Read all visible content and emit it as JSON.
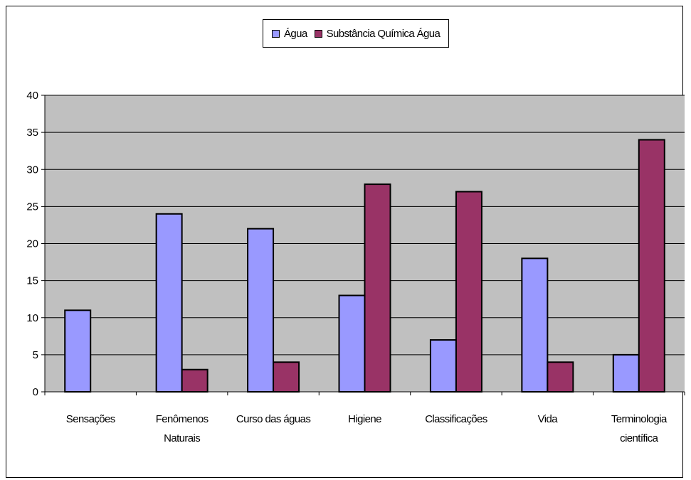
{
  "chart_data": {
    "type": "bar",
    "categories": [
      [
        "Sensações"
      ],
      [
        "Fenômenos",
        "Naturais"
      ],
      [
        "Curso das águas"
      ],
      [
        "Higiene"
      ],
      [
        "Classificações"
      ],
      [
        "Vida"
      ],
      [
        "Terminologia",
        "científica"
      ]
    ],
    "series": [
      {
        "name": "Água",
        "color": "#9999ff",
        "values": [
          11,
          24,
          22,
          13,
          7,
          18,
          5
        ]
      },
      {
        "name": "Substância Química Água",
        "color": "#993366",
        "values": [
          0,
          3,
          4,
          28,
          27,
          4,
          34
        ]
      }
    ],
    "ylim": [
      0,
      40
    ],
    "yticks": [
      0,
      5,
      10,
      15,
      20,
      25,
      30,
      35,
      40
    ],
    "grid": true,
    "plot_background": "#c0c0c0",
    "legend_position": "top-center",
    "title": "",
    "xlabel": "",
    "ylabel": ""
  }
}
